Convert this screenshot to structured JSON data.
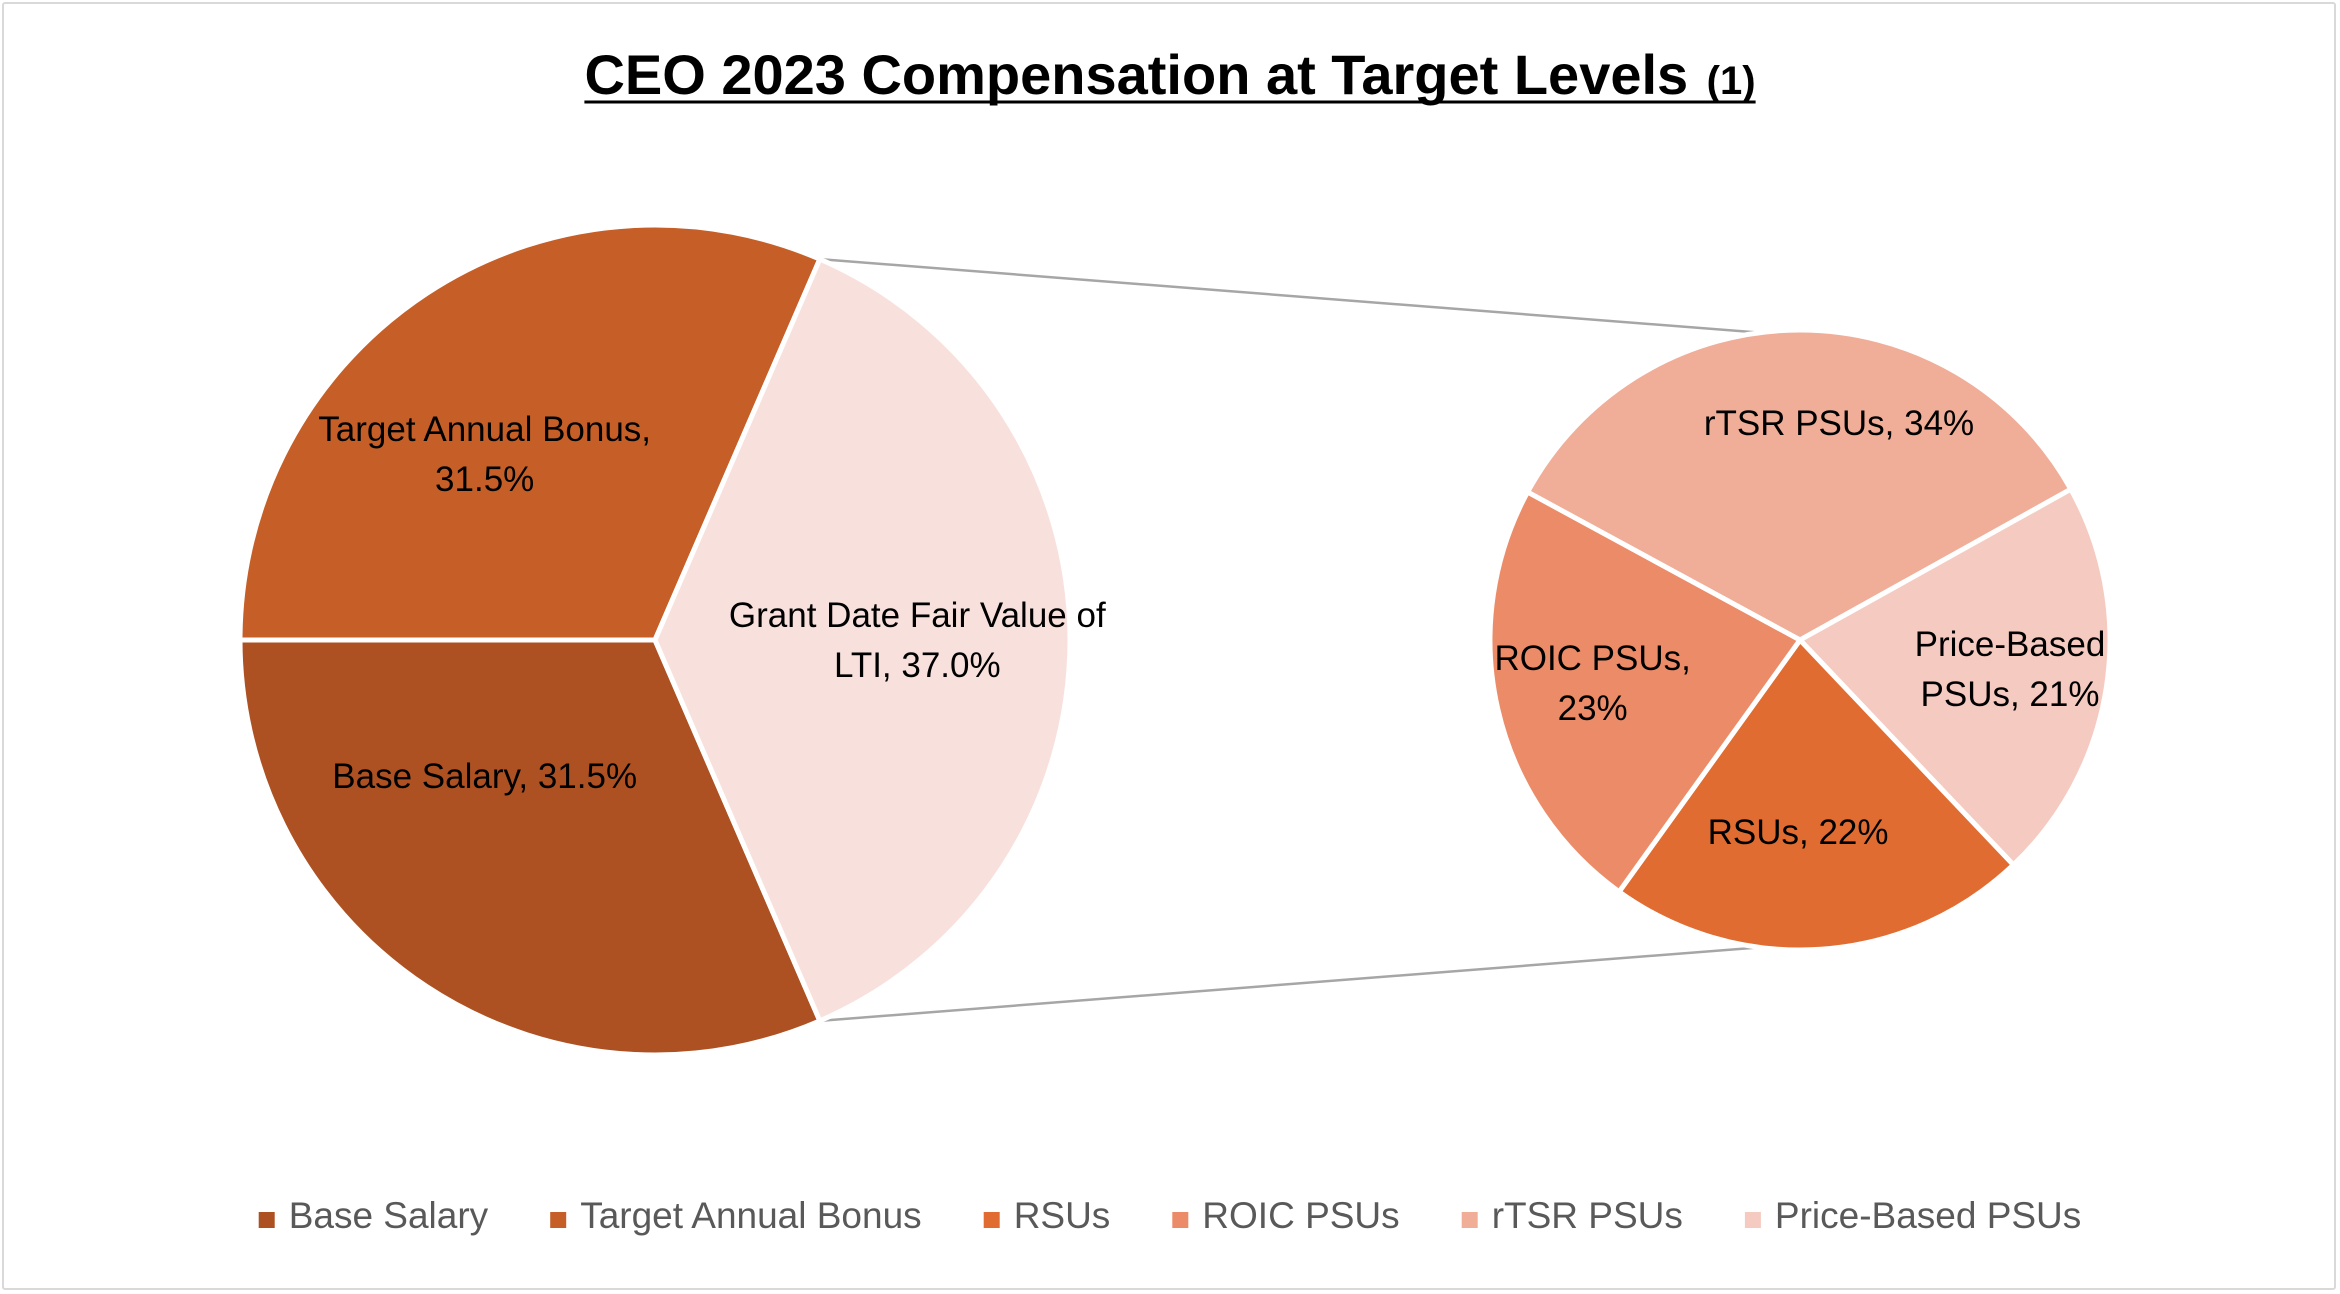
{
  "chart_data": {
    "type": "pie",
    "title": "CEO 2023 Compensation at Target Levels",
    "title_note": "(1)",
    "sub_chart": "pie-of-pie",
    "main_pie": [
      {
        "name": "Base Salary",
        "value": 31.5,
        "label_lines": [
          "Base Salary, 31.5%"
        ],
        "color": "#ad5122"
      },
      {
        "name": "Target Annual Bonus",
        "value": 31.5,
        "label_lines": [
          "Target Annual Bonus,",
          "31.5%"
        ],
        "color": "#c55f27"
      },
      {
        "name": "Grant Date Fair Value of LTI",
        "value": 37.0,
        "label_lines": [
          "Grant Date Fair Value of",
          "LTI, 37.0%"
        ],
        "color": "#f8e1dc"
      }
    ],
    "secondary_pie": [
      {
        "name": "rTSR PSUs",
        "value": 34,
        "label_lines": [
          "rTSR PSUs, 34%"
        ],
        "color": "#f0ad98"
      },
      {
        "name": "Price-Based PSUs",
        "value": 21,
        "label_lines": [
          "Price-Based",
          "PSUs, 21%"
        ],
        "color": "#f5cac0"
      },
      {
        "name": "RSUs",
        "value": 22,
        "label_lines": [
          "RSUs, 22%"
        ],
        "color": "#e06c31"
      },
      {
        "name": "ROIC PSUs",
        "value": 23,
        "label_lines": [
          "ROIC PSUs,",
          "23%"
        ],
        "color": "#ec8b68"
      }
    ],
    "legend": {
      "placement": "bottom",
      "entries": [
        {
          "name": "Base Salary",
          "color": "#ad5122"
        },
        {
          "name": "Target Annual Bonus",
          "color": "#c55f27"
        },
        {
          "name": "RSUs",
          "color": "#e06c31"
        },
        {
          "name": "ROIC PSUs",
          "color": "#ec8b68"
        },
        {
          "name": "rTSR PSUs",
          "color": "#f0ad98"
        },
        {
          "name": "Price-Based PSUs",
          "color": "#f5cac0"
        }
      ]
    }
  }
}
